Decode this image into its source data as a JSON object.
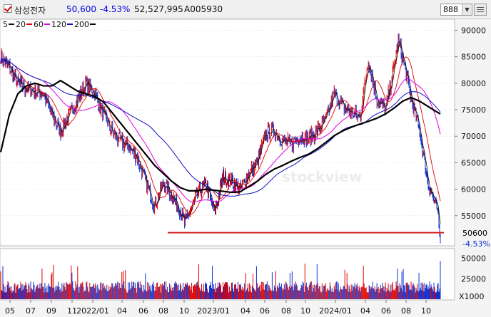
{
  "header": {
    "stock_name": "삼성전자",
    "price": "50,600",
    "change_rate": "-4.53%",
    "volume": "52,527,995",
    "code": "A005930",
    "period_value": "888"
  },
  "legend": [
    {
      "label": "5",
      "color": "#111111"
    },
    {
      "label": "20",
      "color": "#e00000"
    },
    {
      "label": "60",
      "color": "#e000e0"
    },
    {
      "label": "120",
      "color": "#1010c0"
    },
    {
      "label": "200",
      "color": "#000000"
    }
  ],
  "price_axis_ticks": [
    "90000",
    "85000",
    "80000",
    "75000",
    "70000",
    "65000",
    "60000",
    "55000"
  ],
  "volume_axis_ticks": [
    "50000",
    "25000"
  ],
  "volume_unit": "X1000",
  "current_price_label": "50600",
  "current_rate_label": "-4.53%",
  "x_labels": [
    "05",
    "07",
    "09",
    "11",
    "2022/01",
    "04",
    "06",
    "08",
    "10",
    "2023/01",
    "04",
    "06",
    "08",
    "10",
    "2024/01",
    "04",
    "06",
    "08",
    "10"
  ],
  "watermark": "stockview",
  "colors": {
    "up": "#e00000",
    "down": "#1030d0",
    "support_line": "#d02020"
  },
  "chart_data": {
    "type": "line",
    "price_ylim": [
      50000,
      91000
    ],
    "volume_ylim": [
      0,
      55000
    ],
    "support_level": 51800,
    "series": [
      {
        "name": "5",
        "values": []
      },
      {
        "name": "200",
        "values": []
      }
    ],
    "anchors_price": [
      [
        0,
        85000
      ],
      [
        12,
        83000
      ],
      [
        24,
        80000
      ],
      [
        36,
        79000
      ],
      [
        48,
        78500
      ],
      [
        60,
        78000
      ],
      [
        72,
        74000
      ],
      [
        84,
        71000
      ],
      [
        96,
        74000
      ],
      [
        108,
        77000
      ],
      [
        120,
        80000
      ],
      [
        132,
        78000
      ],
      [
        144,
        74000
      ],
      [
        156,
        71000
      ],
      [
        168,
        69000
      ],
      [
        180,
        68000
      ],
      [
        192,
        66000
      ],
      [
        204,
        61000
      ],
      [
        216,
        57000
      ],
      [
        228,
        61000
      ],
      [
        240,
        59000
      ],
      [
        252,
        56000
      ],
      [
        258,
        53500
      ],
      [
        264,
        55500
      ],
      [
        276,
        59000
      ],
      [
        288,
        61000
      ],
      [
        300,
        55500
      ],
      [
        312,
        62500
      ],
      [
        324,
        61500
      ],
      [
        336,
        60000
      ],
      [
        348,
        63000
      ],
      [
        360,
        65000
      ],
      [
        372,
        70500
      ],
      [
        384,
        71000
      ],
      [
        396,
        69000
      ],
      [
        408,
        68500
      ],
      [
        420,
        70000
      ],
      [
        432,
        69500
      ],
      [
        444,
        71000
      ],
      [
        456,
        73000
      ],
      [
        468,
        78000
      ],
      [
        480,
        75500
      ],
      [
        492,
        74500
      ],
      [
        504,
        73500
      ],
      [
        516,
        84500
      ],
      [
        528,
        77000
      ],
      [
        540,
        75000
      ],
      [
        552,
        83000
      ],
      [
        558,
        88000
      ],
      [
        564,
        85000
      ],
      [
        576,
        77000
      ],
      [
        588,
        71000
      ],
      [
        600,
        61000
      ],
      [
        612,
        56500
      ],
      [
        617,
        50600
      ]
    ],
    "anchors_ma200": [
      [
        0,
        67000
      ],
      [
        12,
        74000
      ],
      [
        24,
        78000
      ],
      [
        36,
        79500
      ],
      [
        48,
        80000
      ],
      [
        60,
        79500
      ],
      [
        72,
        79500
      ],
      [
        84,
        80500
      ],
      [
        96,
        79500
      ],
      [
        108,
        78500
      ],
      [
        120,
        78000
      ],
      [
        132,
        77500
      ],
      [
        144,
        76500
      ],
      [
        156,
        74500
      ],
      [
        168,
        72500
      ],
      [
        180,
        70500
      ],
      [
        192,
        68500
      ],
      [
        204,
        66500
      ],
      [
        216,
        64500
      ],
      [
        228,
        63000
      ],
      [
        240,
        61500
      ],
      [
        252,
        60300
      ],
      [
        264,
        59700
      ],
      [
        276,
        59700
      ],
      [
        288,
        60000
      ],
      [
        300,
        59800
      ],
      [
        312,
        59600
      ],
      [
        324,
        59400
      ],
      [
        336,
        59500
      ],
      [
        348,
        60500
      ],
      [
        360,
        61500
      ],
      [
        372,
        62800
      ],
      [
        384,
        63800
      ],
      [
        396,
        64500
      ],
      [
        408,
        65300
      ],
      [
        420,
        66000
      ],
      [
        432,
        66600
      ],
      [
        444,
        67600
      ],
      [
        456,
        68800
      ],
      [
        468,
        70100
      ],
      [
        480,
        71000
      ],
      [
        492,
        71700
      ],
      [
        504,
        72300
      ],
      [
        516,
        72800
      ],
      [
        528,
        73400
      ],
      [
        540,
        74200
      ],
      [
        552,
        75300
      ],
      [
        564,
        76600
      ],
      [
        576,
        77300
      ],
      [
        588,
        76600
      ],
      [
        600,
        75600
      ],
      [
        612,
        74600
      ],
      [
        617,
        74200
      ]
    ]
  }
}
